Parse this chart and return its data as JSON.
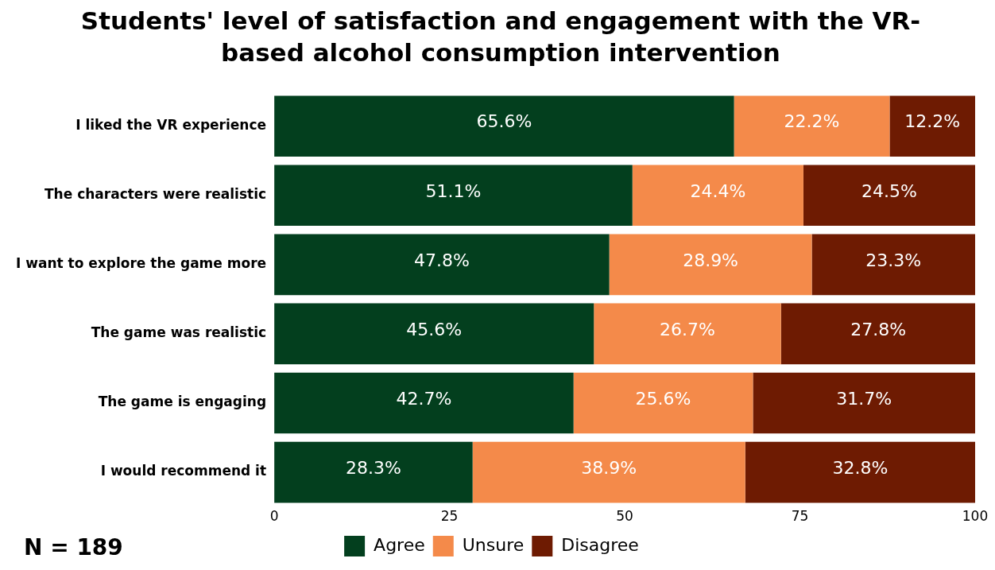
{
  "chart_data": {
    "type": "bar",
    "orientation": "horizontal",
    "stacked": true,
    "title": "Students' level of satisfaction and engagement with the VR-based alcohol consumption intervention",
    "categories": [
      "I liked the VR experience",
      "The characters were realistic",
      "I want to explore the game more",
      "The game was realistic",
      "The game is engaging",
      "I would recommend it"
    ],
    "series": [
      {
        "name": "Agree",
        "color": "#033f1e",
        "values": [
          65.6,
          51.1,
          47.8,
          45.6,
          42.7,
          28.3
        ],
        "value_labels": [
          "65.6%",
          "51.1%",
          "47.8%",
          "45.6%",
          "42.7%",
          "28.3%"
        ]
      },
      {
        "name": "Unsure",
        "color": "#f48a4a",
        "values": [
          22.2,
          24.4,
          28.9,
          26.7,
          25.6,
          38.9
        ],
        "value_labels": [
          "22.2%",
          "24.4%",
          "28.9%",
          "26.7%",
          "25.6%",
          "38.9%"
        ]
      },
      {
        "name": "Disagree",
        "color": "#6e1b02",
        "values": [
          12.2,
          24.5,
          23.3,
          27.8,
          31.7,
          32.8
        ],
        "value_labels": [
          "12.2%",
          "24.5%",
          "23.3%",
          "27.8%",
          "31.7%",
          "32.8%"
        ]
      }
    ],
    "xlim": [
      0,
      100
    ],
    "xticks": [
      0,
      25,
      50,
      75,
      100
    ],
    "grid": false,
    "legend": "bottom",
    "annotations": [
      "N = 189"
    ]
  }
}
